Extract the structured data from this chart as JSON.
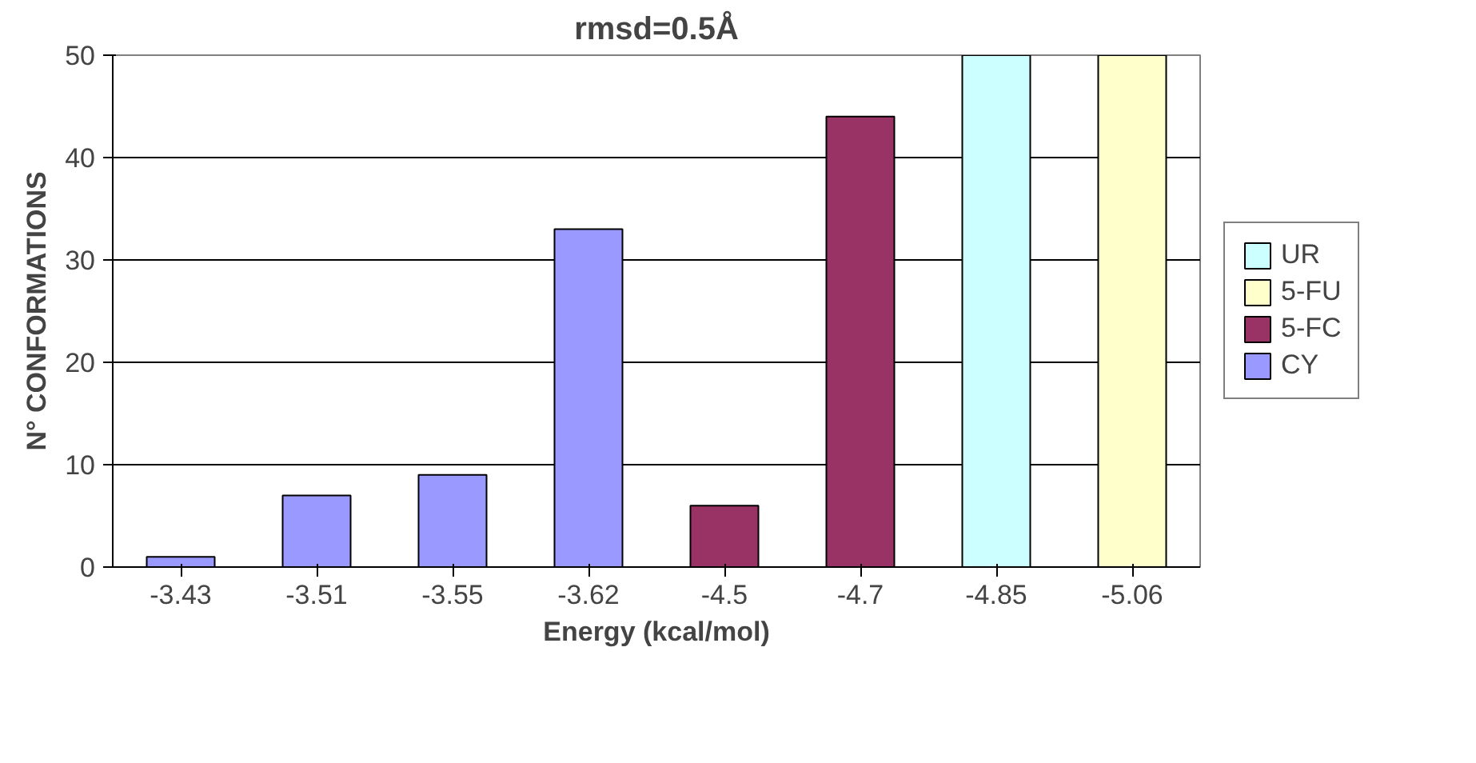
{
  "chart_data": {
    "type": "bar",
    "title": "rmsd=0.5Å",
    "xlabel": "Energy (kcal/mol)",
    "ylabel": "N° CONFORMATIONS",
    "categories": [
      "-3.43",
      "-3.51",
      "-3.55",
      "-3.62",
      "-4.5",
      "-4.7",
      "-4.85",
      "-5.06"
    ],
    "series": [
      {
        "name": "UR",
        "color": "#ccffff",
        "values": [
          null,
          null,
          null,
          null,
          null,
          null,
          50,
          null
        ]
      },
      {
        "name": "5-FU",
        "color": "#ffffcc",
        "values": [
          null,
          null,
          null,
          null,
          null,
          null,
          null,
          50
        ]
      },
      {
        "name": "5-FC",
        "color": "#993366",
        "values": [
          null,
          null,
          null,
          null,
          6,
          44,
          null,
          null
        ]
      },
      {
        "name": "CY",
        "color": "#9999ff",
        "values": [
          1,
          7,
          9,
          33,
          null,
          null,
          null,
          null
        ]
      }
    ],
    "ylim": [
      0,
      50
    ],
    "yticks": [
      0,
      10,
      20,
      30,
      40,
      50
    ],
    "grid": "y",
    "legend": "right"
  }
}
